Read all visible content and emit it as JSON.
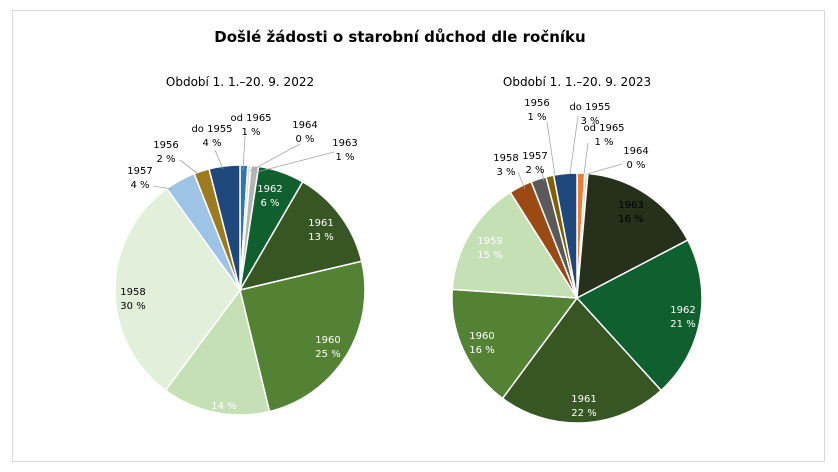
{
  "title": "Došlé žádosti o starobní důchod dle ročníku",
  "colors": {
    "1955": "#1f497d",
    "1956": "#9c7a1e",
    "1957": "#9dc3e6",
    "1958_2022": "#e2efda",
    "1958_2023": "#9c4a14",
    "1959": "#c5e0b4",
    "1960": "#548235",
    "1961": "#375623",
    "1962": "#105f2e",
    "1963_2022": "#b4b4b4",
    "1963_2023": "#26301a",
    "1964": "#d9d9d9",
    "1965": "#2e75b6",
    "1965_2023": "#ed7d31",
    "1956_2023": "#5a5a5a",
    "1957_2023": "#806000"
  },
  "chart_data": [
    {
      "type": "pie",
      "title": "Období 1. 1.–20. 9. 2022",
      "slices": [
        {
          "label": "od 1965",
          "value": 1,
          "pct_text": "1 %",
          "color_key": "1965"
        },
        {
          "label": "1964",
          "value": 0.4,
          "pct_text": "0 %",
          "color_key": "1964"
        },
        {
          "label": "1963",
          "value": 1,
          "pct_text": "1 %",
          "color_key": "1963_2022"
        },
        {
          "label": "1962",
          "value": 6,
          "pct_text": "6 %",
          "color_key": "1962"
        },
        {
          "label": "1961",
          "value": 13,
          "pct_text": "13 %",
          "color_key": "1961"
        },
        {
          "label": "1960",
          "value": 25,
          "pct_text": "25 %",
          "color_key": "1960"
        },
        {
          "label": "",
          "value": 14,
          "pct_text": "14 %",
          "color_key": "1959"
        },
        {
          "label": "1958",
          "value": 30,
          "pct_text": "30 %",
          "color_key": "1958_2022"
        },
        {
          "label": "1957",
          "value": 4,
          "pct_text": "4 %",
          "color_key": "1957"
        },
        {
          "label": "1956",
          "value": 2,
          "pct_text": "2 %",
          "color_key": "1956"
        },
        {
          "label": "do 1955",
          "value": 4,
          "pct_text": "4 %",
          "color_key": "1955"
        }
      ]
    },
    {
      "type": "pie",
      "title": "Období 1. 1.–20. 9. 2023",
      "slices": [
        {
          "label": "od 1965",
          "value": 1,
          "pct_text": "1 %",
          "color_key": "1965_2023"
        },
        {
          "label": "1964",
          "value": 0.4,
          "pct_text": "0 %",
          "color_key": "1964"
        },
        {
          "label": "1963",
          "value": 16,
          "pct_text": "16 %",
          "color_key": "1963_2023"
        },
        {
          "label": "1962",
          "value": 21,
          "pct_text": "21 %",
          "color_key": "1962"
        },
        {
          "label": "1961",
          "value": 22,
          "pct_text": "22 %",
          "color_key": "1961"
        },
        {
          "label": "1960",
          "value": 16,
          "pct_text": "16 %",
          "color_key": "1960"
        },
        {
          "label": "1959",
          "value": 15,
          "pct_text": "15 %",
          "color_key": "1959"
        },
        {
          "label": "1958",
          "value": 3,
          "pct_text": "3 %",
          "color_key": "1958_2023"
        },
        {
          "label": "1957",
          "value": 2,
          "pct_text": "2 %",
          "color_key": "1956_2023"
        },
        {
          "label": "1956",
          "value": 1,
          "pct_text": "1 %",
          "color_key": "1957_2023"
        },
        {
          "label": "do 1955",
          "value": 3,
          "pct_text": "3 %",
          "color_key": "1955"
        }
      ]
    }
  ]
}
